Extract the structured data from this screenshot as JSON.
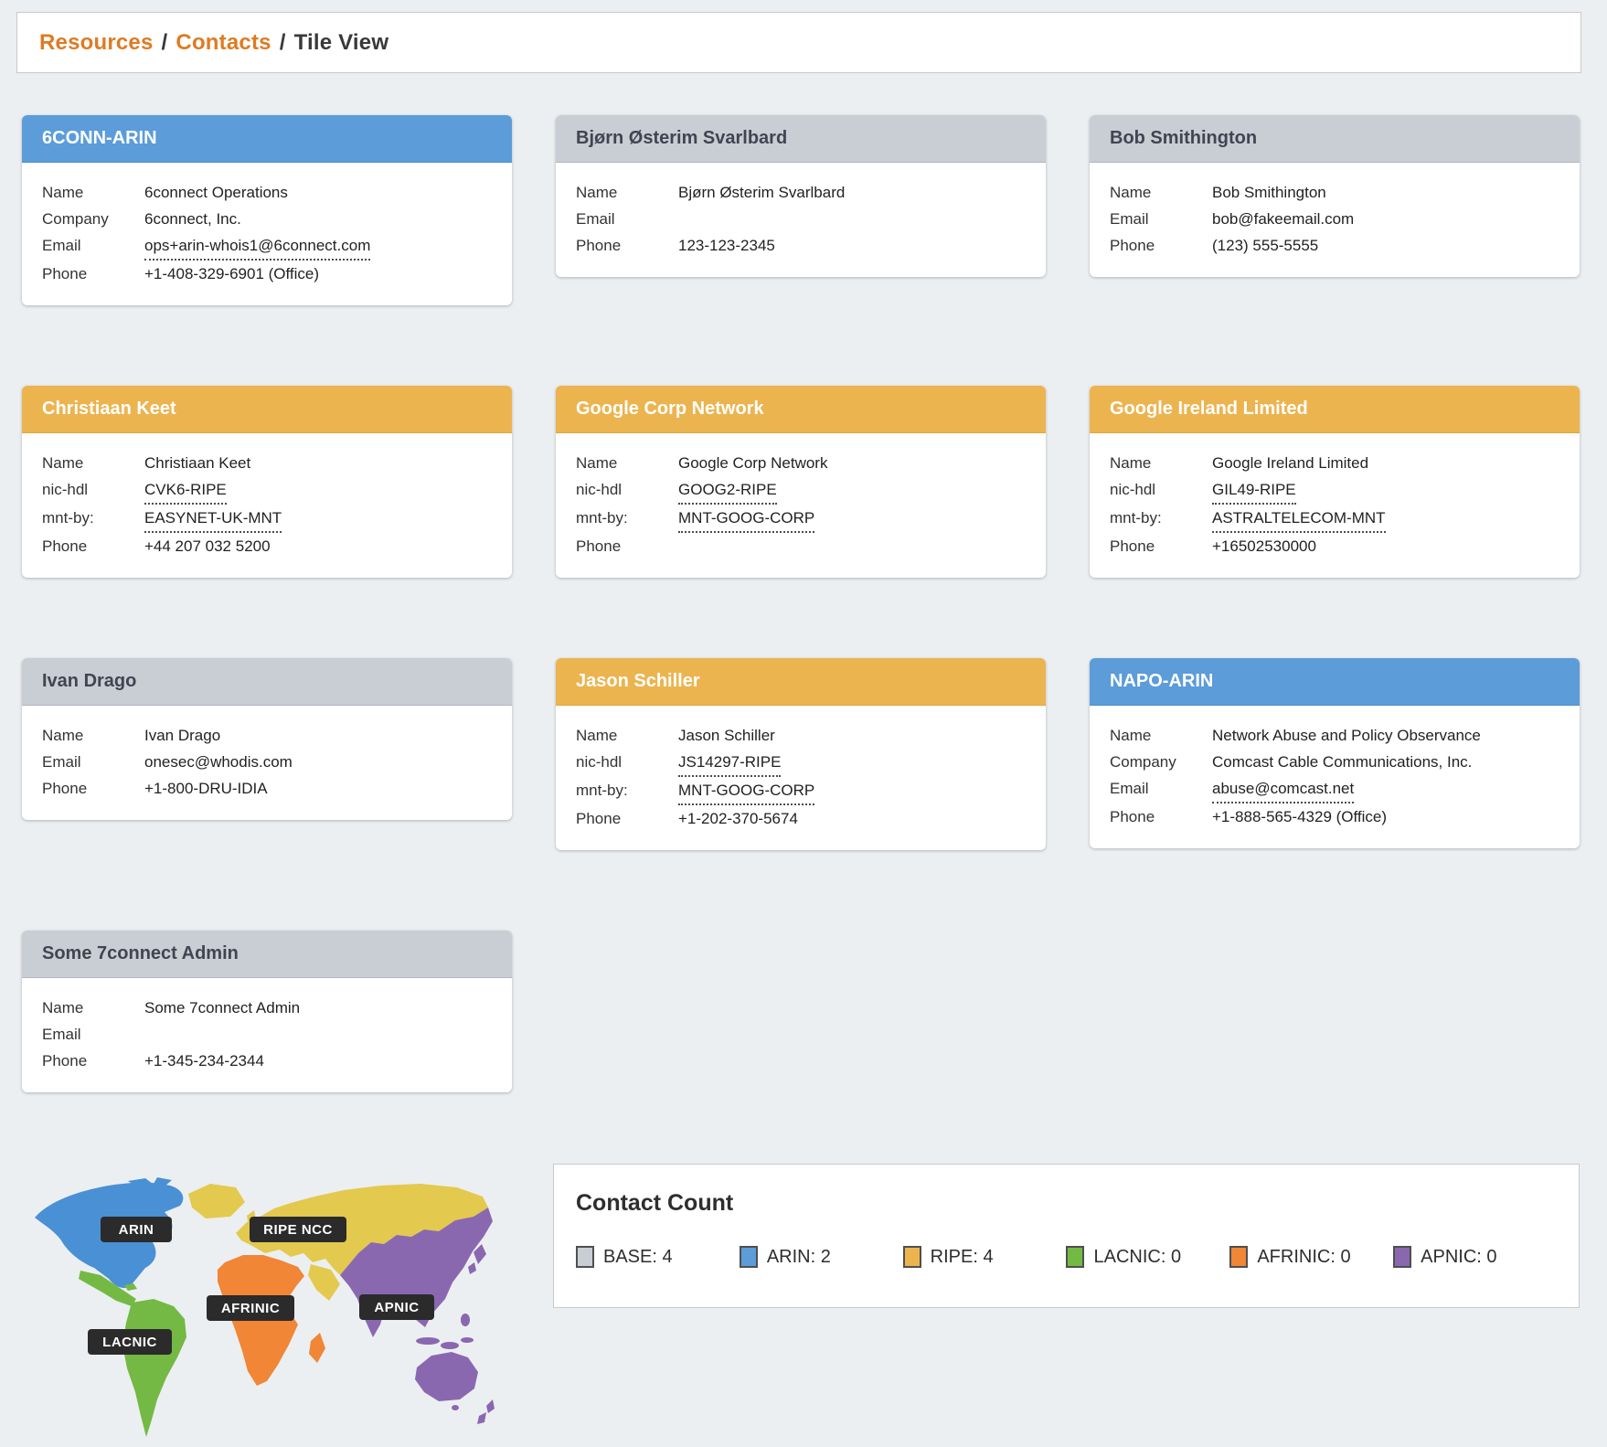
{
  "breadcrumb": {
    "items": [
      {
        "label": "Resources",
        "link": true
      },
      {
        "label": "Contacts",
        "link": true
      },
      {
        "label": "Tile View",
        "link": false
      }
    ]
  },
  "cards": [
    {
      "title": "6CONN-ARIN",
      "variant": "arin",
      "rows": [
        {
          "label": "Name",
          "value": "6connect Operations",
          "link": false
        },
        {
          "label": "Company",
          "value": "6connect, Inc.",
          "link": false
        },
        {
          "label": "Email",
          "value": "ops+arin-whois1@6connect.com",
          "link": true
        },
        {
          "label": "Phone",
          "value": "+1-408-329-6901 (Office)",
          "link": false
        }
      ]
    },
    {
      "title": "Bjørn Østerim Svarlbard",
      "variant": "base",
      "rows": [
        {
          "label": "Name",
          "value": "Bjørn Østerim Svarlbard",
          "link": false
        },
        {
          "label": "Email",
          "value": "",
          "link": false
        },
        {
          "label": "Phone",
          "value": "123-123-2345",
          "link": false
        }
      ]
    },
    {
      "title": "Bob Smithington",
      "variant": "base",
      "rows": [
        {
          "label": "Name",
          "value": "Bob Smithington",
          "link": false
        },
        {
          "label": "Email",
          "value": "bob@fakeemail.com",
          "link": false
        },
        {
          "label": "Phone",
          "value": "(123) 555-5555",
          "link": false
        }
      ]
    },
    {
      "title": "Christiaan Keet",
      "variant": "ripe",
      "rows": [
        {
          "label": "Name",
          "value": "Christiaan Keet",
          "link": false
        },
        {
          "label": "nic-hdl",
          "value": "CVK6-RIPE",
          "link": true
        },
        {
          "label": "mnt-by:",
          "value": "EASYNET-UK-MNT",
          "link": true
        },
        {
          "label": "Phone",
          "value": "+44 207 032 5200",
          "link": false
        }
      ]
    },
    {
      "title": "Google Corp Network",
      "variant": "ripe",
      "rows": [
        {
          "label": "Name",
          "value": "Google Corp Network",
          "link": false
        },
        {
          "label": "nic-hdl",
          "value": "GOOG2-RIPE",
          "link": true
        },
        {
          "label": "mnt-by:",
          "value": "MNT-GOOG-CORP",
          "link": true
        },
        {
          "label": "Phone",
          "value": "",
          "link": false
        }
      ]
    },
    {
      "title": "Google Ireland Limited",
      "variant": "ripe",
      "rows": [
        {
          "label": "Name",
          "value": "Google Ireland Limited",
          "link": false
        },
        {
          "label": "nic-hdl",
          "value": "GIL49-RIPE",
          "link": true
        },
        {
          "label": "mnt-by:",
          "value": "ASTRALTELECOM-MNT",
          "link": true
        },
        {
          "label": "Phone",
          "value": "+16502530000",
          "link": false
        }
      ]
    },
    {
      "title": "Ivan Drago",
      "variant": "base",
      "rows": [
        {
          "label": "Name",
          "value": "Ivan Drago",
          "link": false
        },
        {
          "label": "Email",
          "value": "onesec@whodis.com",
          "link": false
        },
        {
          "label": "Phone",
          "value": "+1-800-DRU-IDIA",
          "link": false
        }
      ]
    },
    {
      "title": "Jason Schiller",
      "variant": "ripe",
      "rows": [
        {
          "label": "Name",
          "value": "Jason Schiller",
          "link": false
        },
        {
          "label": "nic-hdl",
          "value": "JS14297-RIPE",
          "link": true
        },
        {
          "label": "mnt-by:",
          "value": "MNT-GOOG-CORP",
          "link": true
        },
        {
          "label": "Phone",
          "value": "+1-202-370-5674",
          "link": false
        }
      ]
    },
    {
      "title": "NAPO-ARIN",
      "variant": "arin",
      "rows": [
        {
          "label": "Name",
          "value": "Network Abuse and Policy Observance",
          "link": false
        },
        {
          "label": "Company",
          "value": "Comcast Cable Communications, Inc.",
          "link": false
        },
        {
          "label": "Email",
          "value": "abuse@comcast.net",
          "link": true
        },
        {
          "label": "Phone",
          "value": "+1-888-565-4329 (Office)",
          "link": false
        }
      ]
    },
    {
      "title": "Some 7connect Admin",
      "variant": "base",
      "rows": [
        {
          "label": "Name",
          "value": "Some 7connect Admin",
          "link": false
        },
        {
          "label": "Email",
          "value": "",
          "link": false
        },
        {
          "label": "Phone",
          "value": "+1-345-234-2344",
          "link": false
        }
      ]
    }
  ],
  "map": {
    "regions": [
      {
        "name": "ARIN",
        "color": "#4a90d5"
      },
      {
        "name": "RIPE NCC",
        "color": "#e3c94e"
      },
      {
        "name": "AFRINIC",
        "color": "#f08636"
      },
      {
        "name": "LACNIC",
        "color": "#74b944"
      },
      {
        "name": "APNIC",
        "color": "#8a68b0"
      }
    ],
    "labels": [
      {
        "text": "ARIN"
      },
      {
        "text": "RIPE NCC"
      },
      {
        "text": "AFRINIC"
      },
      {
        "text": "LACNIC"
      },
      {
        "text": "APNIC"
      }
    ]
  },
  "contact_count": {
    "title": "Contact Count",
    "legend": [
      {
        "label": "BASE",
        "count": 4,
        "color": "#c9cdd4"
      },
      {
        "label": "ARIN",
        "count": 2,
        "color": "#5b9cd9"
      },
      {
        "label": "RIPE",
        "count": 4,
        "color": "#ecb44f"
      },
      {
        "label": "LACNIC",
        "count": 0,
        "color": "#74b944"
      },
      {
        "label": "AFRINIC",
        "count": 0,
        "color": "#f08636"
      },
      {
        "label": "APNIC",
        "count": 0,
        "color": "#8a68b0"
      }
    ]
  },
  "colors": {
    "page_background": "#eceff1",
    "breadcrumb_link": "#df7b23",
    "header_arin": "#5b9cd9",
    "header_ripe": "#ecb44f",
    "header_base": "#c9cdd4",
    "map_label_chip": "#2b2b2b"
  }
}
